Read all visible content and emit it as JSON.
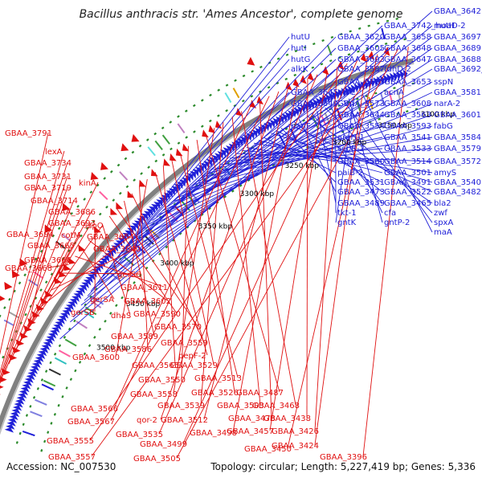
{
  "header": {
    "title": "Bacillus anthracis str. 'Ames Ancestor', complete genome"
  },
  "footer": {
    "accession": "Accession: NC_007530",
    "summary": "Topology: circular; Length: 5,227,419 bp; Genes: 5,336"
  },
  "colors": {
    "forward": "#2020d8",
    "reverse": "#e01010",
    "backbone": "#808080",
    "ticks": "#2a8a2a"
  },
  "scale_labels": [
    {
      "text": "3500 kbp",
      "pos": 3500
    },
    {
      "text": "3450 kbp",
      "pos": 3450
    },
    {
      "text": "3400 kbp",
      "pos": 3400
    },
    {
      "text": "3350 kbp",
      "pos": 3350
    },
    {
      "text": "3300 kbp",
      "pos": 3300
    },
    {
      "text": "3250 kbp",
      "pos": 3250
    },
    {
      "text": "3200 kbp",
      "pos": 3200
    },
    {
      "text": "3150 kbp",
      "pos": 3150
    },
    {
      "text": "3100 kbp",
      "pos": 3100
    }
  ],
  "forward_labels": [
    "GBAA_3642",
    "moaD-2",
    "GBAA_3742_hutH",
    "GBAA_3697",
    "GBAA_3658",
    "GBAA_3620",
    "hutU",
    "GBAA_3689",
    "GBAA_3648",
    "GBAA_3605",
    "hutI",
    "GBAA_3688",
    "GBAA_3647",
    "GBAA_3603",
    "hutG",
    "GBAA_3692_parC",
    "fdhD-2",
    "GBAA_3587",
    "alkK",
    "sspN",
    "GBAA_3653",
    "GBAA_3615",
    "GBAA_3581",
    "acnA",
    "parE",
    "GBAA_3645",
    "narA-2",
    "GBAA_3608",
    "GBAA_3573",
    "GBAA_3649",
    "GBAA_3601",
    "GBAA_3563",
    "GBAA_3644",
    "fabG",
    "GBAA_3593",
    "GBAA_3554",
    "panF",
    "GBAA_3584",
    "GBAA_3541",
    "argH-1",
    "GBAA_3579",
    "GBAA_3533",
    "cspB-2",
    "GBAA_3572",
    "GBAA_3514",
    "GBAA_3560",
    "amyS",
    "GBAA_3501",
    "paiB-2",
    "GBAA_3540",
    "GBAA_3491",
    "GBAA_3531",
    "GBAA_3482",
    "GBAA_3522",
    "GBAA_3473",
    "bla2",
    "GBAA_3465",
    "GBAA_3489",
    "zwf",
    "cfa",
    "tkt-1",
    "spxA",
    "gntP-2",
    "gntK",
    "maA"
  ],
  "reverse_labels": [
    "GBAA_3791",
    "lexA",
    "GBAA_3734",
    "GBAA_3731",
    "GBAA_3719",
    "GBAA_3714",
    "kinA",
    "GBAA_3686",
    "GBAA_3693",
    "sspO",
    "GBAA_3694",
    "cotM",
    "GBAA_3654",
    "GBAA_3665",
    "GBAA_3640",
    "GBAA_3666",
    "gerSC",
    "GBAA_3668",
    "GBAA_3611",
    "gerSA",
    "GBAA_3602",
    "gerSB",
    "dhaS",
    "GBAA_3590",
    "GBAA_3570",
    "GBAA_3589",
    "GBAA_3559",
    "GBAA_3586",
    "GBAA_3600",
    "pepF-2",
    "GBAA_3565",
    "GBAA_3529",
    "GBAA_3513",
    "GBAA_3550",
    "GBAA_3526",
    "GBAA_3487",
    "GBAA_3558",
    "GBAA_3539",
    "GBAA_3503",
    "GBAA_3468",
    "GBAA_3566",
    "GBAA_3478",
    "GBAA_3567",
    "qor-2",
    "GBAA_3512",
    "GBAA_3498",
    "GBAA_3438",
    "GBAA_3535",
    "GBAA_3457",
    "GBAA_3426",
    "GBAA_3555",
    "GBAA_3499",
    "GBAA_3424",
    "GBAA_3450",
    "GBAA_3557",
    "GBAA_3505",
    "GBAA_3396"
  ]
}
